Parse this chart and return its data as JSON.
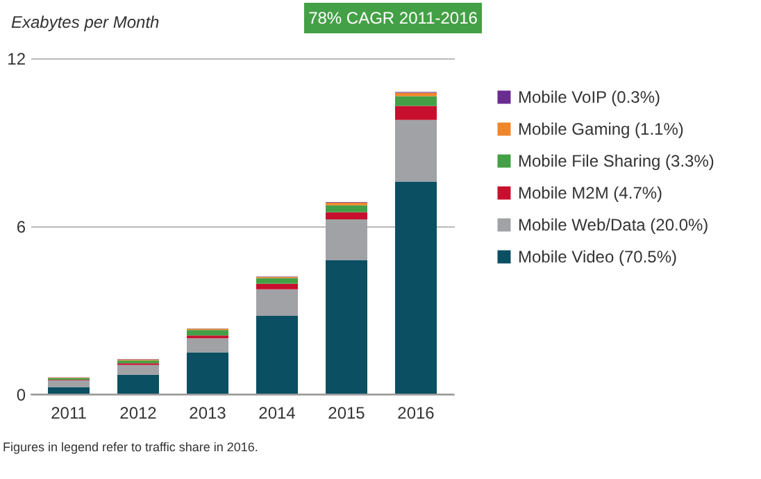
{
  "chart_data": {
    "type": "bar",
    "stacked": true,
    "ylabel": "Exabytes per Month",
    "categories": [
      "2011",
      "2012",
      "2013",
      "2014",
      "2015",
      "2016"
    ],
    "series": [
      {
        "name": "Mobile Video (70.5%)",
        "color": "#0b4f63",
        "values": [
          0.25,
          0.7,
          1.5,
          2.8,
          4.8,
          7.6
        ]
      },
      {
        "name": "Mobile Web/Data (20.0%)",
        "color": "#a0a2a5",
        "values": [
          0.25,
          0.35,
          0.5,
          0.95,
          1.45,
          2.2
        ]
      },
      {
        "name": "Mobile M2M (4.7%)",
        "color": "#c8102e",
        "values": [
          0.02,
          0.06,
          0.1,
          0.2,
          0.25,
          0.5
        ]
      },
      {
        "name": "Mobile File Sharing (3.3%)",
        "color": "#44a046",
        "values": [
          0.06,
          0.1,
          0.2,
          0.2,
          0.25,
          0.35
        ]
      },
      {
        "name": "Mobile Gaming (1.1%)",
        "color": "#f0862b",
        "values": [
          0.02,
          0.03,
          0.04,
          0.04,
          0.1,
          0.12
        ]
      },
      {
        "name": "Mobile VoIP (0.3%)",
        "color": "#6a2c91",
        "values": [
          0.01,
          0.01,
          0.01,
          0.01,
          0.02,
          0.03
        ]
      }
    ],
    "ylim": [
      0,
      12
    ],
    "yticks": [
      0,
      6,
      12
    ],
    "grid": "y",
    "legend": "right",
    "annotations": [
      "78% CAGR 2011-2016",
      "Figures in legend refer to traffic share in 2016."
    ]
  }
}
